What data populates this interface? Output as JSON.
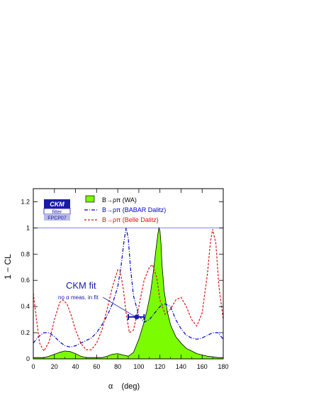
{
  "chart_data": {
    "type": "line",
    "xlabel": "α (deg)",
    "ylabel": "1 − CL",
    "xlim": [
      0,
      180
    ],
    "ylim": [
      0,
      1.3
    ],
    "xticks": [
      0,
      20,
      40,
      60,
      80,
      100,
      120,
      140,
      160,
      180
    ],
    "yticks": [
      0,
      0.2,
      0.4,
      0.6,
      0.8,
      1,
      1.2
    ],
    "reference_line": 1,
    "logo": {
      "line1": "CKM",
      "line2": "fitter",
      "line3": "FPCP07"
    },
    "legend_position": "top",
    "series": [
      {
        "name": "B→ρπ (WA)",
        "style": "filled",
        "color": "#7cfc00",
        "x": [
          0,
          5,
          10,
          15,
          20,
          25,
          30,
          35,
          40,
          45,
          50,
          55,
          60,
          65,
          70,
          75,
          80,
          85,
          90,
          95,
          100,
          105,
          108,
          111,
          114,
          116,
          118,
          119,
          120,
          121,
          122,
          124,
          127,
          130,
          135,
          140,
          145,
          150,
          155,
          160,
          165,
          170,
          175,
          180
        ],
        "y": [
          0.01,
          0.01,
          0.01,
          0.02,
          0.035,
          0.05,
          0.06,
          0.055,
          0.04,
          0.02,
          0.01,
          0.01,
          0.01,
          0.01,
          0.02,
          0.035,
          0.04,
          0.03,
          0.02,
          0.05,
          0.15,
          0.28,
          0.38,
          0.5,
          0.68,
          0.82,
          0.95,
          1.0,
          0.98,
          0.88,
          0.72,
          0.52,
          0.36,
          0.26,
          0.17,
          0.12,
          0.08,
          0.06,
          0.04,
          0.03,
          0.02,
          0.015,
          0.01,
          0.01
        ]
      },
      {
        "name": "B→ρπ (BABAR Dalitz)",
        "style": "dash-dot",
        "color": "#0000cc",
        "x": [
          0,
          5,
          10,
          15,
          20,
          25,
          30,
          35,
          40,
          45,
          50,
          55,
          60,
          65,
          70,
          75,
          80,
          83,
          86,
          88,
          90,
          92,
          95,
          100,
          105,
          110,
          115,
          120,
          125,
          130,
          135,
          140,
          145,
          150,
          155,
          160,
          165,
          170,
          175,
          180
        ],
        "y": [
          0.12,
          0.17,
          0.2,
          0.2,
          0.17,
          0.13,
          0.1,
          0.09,
          0.1,
          0.12,
          0.14,
          0.16,
          0.2,
          0.26,
          0.33,
          0.42,
          0.55,
          0.7,
          0.9,
          1.0,
          0.92,
          0.7,
          0.48,
          0.33,
          0.28,
          0.3,
          0.35,
          0.4,
          0.42,
          0.4,
          0.3,
          0.23,
          0.18,
          0.16,
          0.15,
          0.16,
          0.18,
          0.2,
          0.2,
          0.15
        ]
      },
      {
        "name": "B→ρπ (Belle Dalitz)",
        "style": "dashed",
        "color": "#dd1111",
        "x": [
          0,
          3,
          6,
          10,
          15,
          20,
          25,
          28,
          32,
          36,
          40,
          45,
          50,
          55,
          60,
          65,
          70,
          75,
          80,
          82,
          85,
          88,
          91,
          95,
          100,
          105,
          110,
          113,
          117,
          120,
          125,
          130,
          135,
          140,
          145,
          150,
          155,
          160,
          165,
          168,
          170,
          173,
          176,
          180
        ],
        "y": [
          0.5,
          0.3,
          0.12,
          0.06,
          0.13,
          0.3,
          0.43,
          0.45,
          0.42,
          0.33,
          0.22,
          0.12,
          0.07,
          0.07,
          0.12,
          0.22,
          0.38,
          0.55,
          0.68,
          0.68,
          0.55,
          0.35,
          0.2,
          0.22,
          0.4,
          0.6,
          0.7,
          0.72,
          0.62,
          0.45,
          0.34,
          0.38,
          0.45,
          0.47,
          0.4,
          0.3,
          0.25,
          0.35,
          0.65,
          0.9,
          0.99,
          0.88,
          0.55,
          0.3
        ]
      }
    ],
    "annotation": {
      "title": "CKM fit",
      "subtitle": "no α meas. in fit",
      "value": 98,
      "interval": [
        90,
        105
      ],
      "level": 0.32,
      "arrow_from": [
        66,
        0.47
      ]
    }
  }
}
